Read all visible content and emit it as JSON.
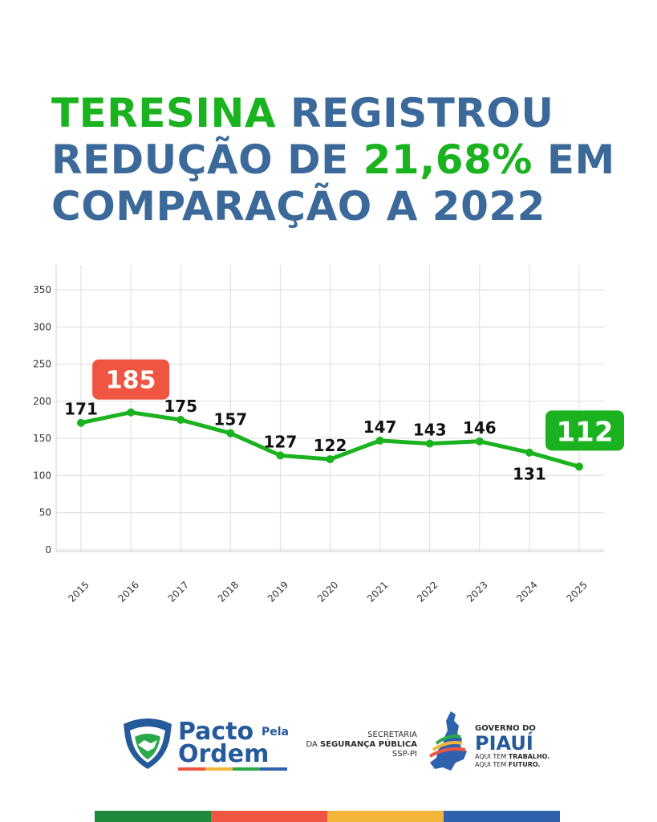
{
  "headline": {
    "line1_green": "TERESINA",
    "line1_rest": " REGISTROU",
    "line2_start": "REDUÇÃO DE ",
    "line2_green": "21,68%",
    "line2_end": " EM",
    "line3": "COMPARAÇÃO A 2022"
  },
  "chart_data": {
    "type": "line",
    "x": [
      "2015",
      "2016",
      "2017",
      "2018",
      "2019",
      "2020",
      "2021",
      "2022",
      "2023",
      "2024",
      "2025"
    ],
    "values": [
      171,
      185,
      175,
      157,
      127,
      122,
      147,
      143,
      146,
      131,
      112
    ],
    "yticks": [
      0,
      50,
      100,
      150,
      200,
      250,
      300,
      350
    ],
    "ylim": [
      0,
      350
    ],
    "grid": true,
    "line_color": "#1ab31f",
    "highlight_max": {
      "value": 185,
      "color": "#ef5541"
    },
    "highlight_last": {
      "value": 112,
      "color": "#1ab31f"
    }
  },
  "footer": {
    "pacto_word": "Pacto",
    "pela_word": "Pela",
    "ordem_word": "Ordem",
    "ssp_line1": "SECRETARIA",
    "ssp_line2_prefix": "DA ",
    "ssp_line2_bold": "SEGURANÇA PÚBLICA",
    "ssp_line3": "SSP-PI",
    "gov_line1": "GOVERNO DO",
    "gov_line2": "PIAUÍ",
    "gov_line3_prefix": "AQUI TEM ",
    "gov_line3_bold": "TRABALHO.",
    "gov_line4_prefix": "AQUI TEM ",
    "gov_line4_bold": "FUTURO."
  },
  "colors": {
    "blue": "#3b6a9a",
    "green": "#1ab31f",
    "red": "#ef5541",
    "bar": [
      "#1f8a3c",
      "#ef5541",
      "#f4b63a",
      "#2f62ad"
    ]
  }
}
